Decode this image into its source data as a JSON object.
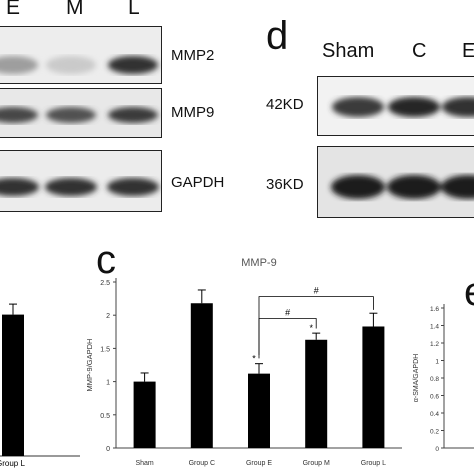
{
  "panel_letters": {
    "d": "d",
    "c": "c",
    "e": "e"
  },
  "blot_left": {
    "lanes": [
      "E",
      "M",
      "L"
    ],
    "bands": [
      {
        "label": "MMP2",
        "intensity": [
          0.35,
          0.15,
          0.85
        ]
      },
      {
        "label": "MMP9",
        "intensity": [
          0.75,
          0.7,
          0.8
        ]
      },
      {
        "label": "GAPDH",
        "intensity": [
          0.85,
          0.85,
          0.85
        ]
      }
    ]
  },
  "blot_right": {
    "lanes": [
      "Sham",
      "C",
      "E"
    ],
    "bands": [
      {
        "label": "42KD",
        "intensity": [
          0.8,
          0.9,
          0.85
        ]
      },
      {
        "label": "36KD",
        "intensity": [
          0.95,
          0.95,
          0.95
        ]
      }
    ]
  },
  "left_partial_chart": {
    "x_label": "Group L",
    "bar_value": 2.02,
    "bar_error": 0.15
  },
  "chart_data": [
    {
      "type": "bar",
      "title": "MMP-9",
      "categories": [
        "Sham",
        "Group C",
        "Group E",
        "Group M",
        "Group L"
      ],
      "values": [
        1.0,
        2.18,
        1.12,
        1.63,
        1.83
      ],
      "errors": [
        0.13,
        0.2,
        0.15,
        0.1,
        0.2
      ],
      "ylabel": "MMP-9/GAPDH",
      "xlabel": "",
      "ylim": [
        0,
        2.5
      ],
      "yticks": [
        "0",
        "0.5",
        "1",
        "1.5",
        "2",
        "2.5"
      ],
      "significance": [
        {
          "from": "Group E",
          "to": "Group L",
          "label": "#"
        },
        {
          "from": "Group E",
          "to": "Group M",
          "label": "#"
        }
      ],
      "stars": [
        {
          "category": "Group E",
          "label": "*"
        },
        {
          "category": "Group M",
          "label": "*"
        }
      ]
    },
    {
      "type": "bar",
      "ylabel": "α-SMA/GAPDH",
      "yticks": [
        "0",
        "0.2",
        "0.4",
        "0.6",
        "0.8",
        "1",
        "1.2",
        "1.4",
        "1.6"
      ],
      "ylim": [
        0,
        1.6
      ],
      "categories": [],
      "values": []
    }
  ]
}
